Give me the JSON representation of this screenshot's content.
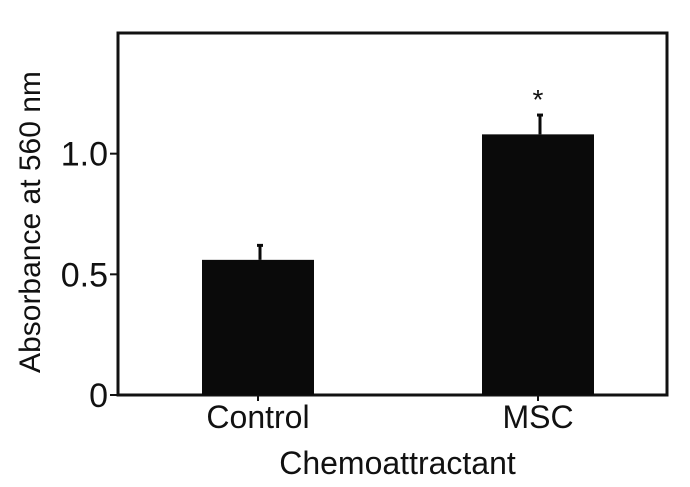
{
  "chart_data": {
    "type": "bar",
    "categories": [
      "Control",
      "MSC"
    ],
    "values": [
      0.56,
      1.08
    ],
    "error_bars": [
      0.06,
      0.08
    ],
    "annotations": [
      {
        "category": "MSC",
        "text": "*"
      }
    ],
    "title": "",
    "xlabel": "Chemoattractant",
    "ylabel": "Absorbance at 560 nm",
    "ylim": [
      0,
      1.5
    ],
    "yticks": [
      0,
      0.5,
      1.0
    ],
    "ytick_labels": [
      "0",
      "0.5",
      "1.0"
    ],
    "grid": false,
    "legend": "none",
    "bar_color": "#0a0a0a",
    "axis_color": "#111111"
  }
}
